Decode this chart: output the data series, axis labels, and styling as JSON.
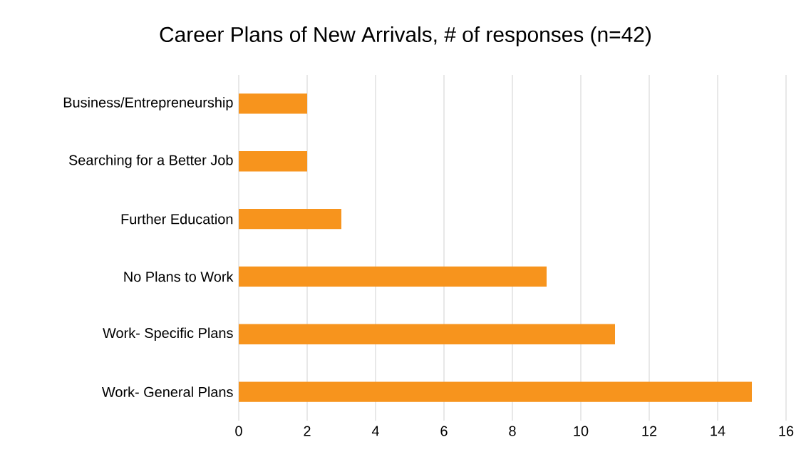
{
  "chart_data": {
    "type": "bar",
    "orientation": "horizontal",
    "title": "Career Plans of New Arrivals, # of responses (n=42)",
    "categories": [
      "Business/Entrepreneurship",
      "Searching for a Better Job",
      "Further Education",
      "No Plans to Work",
      "Work- Specific Plans",
      "Work- General Plans"
    ],
    "values": [
      2,
      2,
      3,
      9,
      11,
      15
    ],
    "color": "#f7941d",
    "xlim": [
      0,
      16
    ],
    "xticks": [
      0,
      2,
      4,
      6,
      8,
      10,
      12,
      14,
      16
    ],
    "grid": "x"
  }
}
